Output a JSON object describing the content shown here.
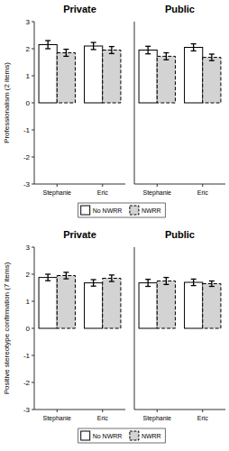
{
  "chart_data": [
    {
      "type": "bar",
      "y_label": "Professionalism (2 items)",
      "facets": [
        "Private",
        "Public"
      ],
      "categories": [
        "Stephanie",
        "Eric"
      ],
      "series": [
        {
          "name": "No NWRR",
          "color": "#ffffff",
          "line_style": "solid",
          "values": [
            [
              2.15,
              2.1
            ],
            [
              1.95,
              2.05
            ]
          ],
          "errors": [
            [
              0.15,
              0.13
            ],
            [
              0.14,
              0.13
            ]
          ]
        },
        {
          "name": "NWRR",
          "color": "#d3d3d3",
          "line_style": "dashed",
          "values": [
            [
              1.85,
              1.95
            ],
            [
              1.72,
              1.68
            ]
          ],
          "errors": [
            [
              0.13,
              0.13
            ],
            [
              0.13,
              0.12
            ]
          ]
        }
      ],
      "ylim": [
        -3,
        3
      ],
      "yticks": [
        -3,
        -2,
        -1,
        0,
        1,
        2,
        3
      ],
      "grid": false,
      "legend": "bottom"
    },
    {
      "type": "bar",
      "y_label": "Positive stereotype confirmation (7 items)",
      "facets": [
        "Private",
        "Public"
      ],
      "categories": [
        "Stephanie",
        "Eric"
      ],
      "series": [
        {
          "name": "No NWRR",
          "color": "#ffffff",
          "line_style": "solid",
          "values": [
            [
              1.88,
              1.68
            ],
            [
              1.68,
              1.7
            ]
          ],
          "errors": [
            [
              0.12,
              0.12
            ],
            [
              0.13,
              0.12
            ]
          ]
        },
        {
          "name": "NWRR",
          "color": "#d3d3d3",
          "line_style": "dashed",
          "values": [
            [
              1.95,
              1.85
            ],
            [
              1.75,
              1.65
            ]
          ],
          "errors": [
            [
              0.12,
              0.12
            ],
            [
              0.13,
              0.1
            ]
          ]
        }
      ],
      "ylim": [
        -3,
        3
      ],
      "yticks": [
        -3,
        -2,
        -1,
        0,
        1,
        2,
        3
      ],
      "grid": false,
      "legend": "bottom"
    }
  ]
}
